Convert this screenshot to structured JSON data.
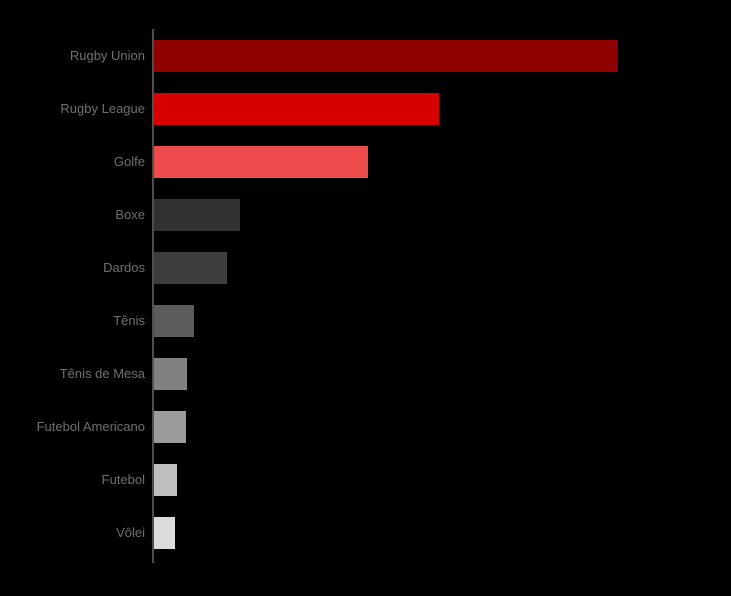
{
  "chart_data": {
    "type": "bar",
    "orientation": "horizontal",
    "title": "",
    "xlabel": "",
    "ylabel": "",
    "categories": [
      "Rugby Union",
      "Rugby League",
      "Golfe",
      "Boxe",
      "Dardos",
      "Tênis",
      "Tênis de Mesa",
      "Futebol Americano",
      "Futebol",
      "Vôlei"
    ],
    "values": [
      100,
      61.4,
      46.1,
      18.5,
      15.7,
      8.6,
      7.1,
      6.9,
      5.0,
      4.5
    ],
    "bar_colors": [
      "#8f0000",
      "#d60000",
      "#ee4c4c",
      "#323232",
      "#3d3d3d",
      "#5c5c5c",
      "#818181",
      "#9b9b9b",
      "#bebebe",
      "#dbdbdb"
    ],
    "value_note": "No numeric axis or data labels visible; values are relative with the longest bar = 100",
    "xlim": [
      0,
      124
    ],
    "grid": false,
    "legend": false,
    "background_color": "#000000",
    "axis_line_color": "#4f4f4f",
    "label_color": "#6f6f6f"
  }
}
